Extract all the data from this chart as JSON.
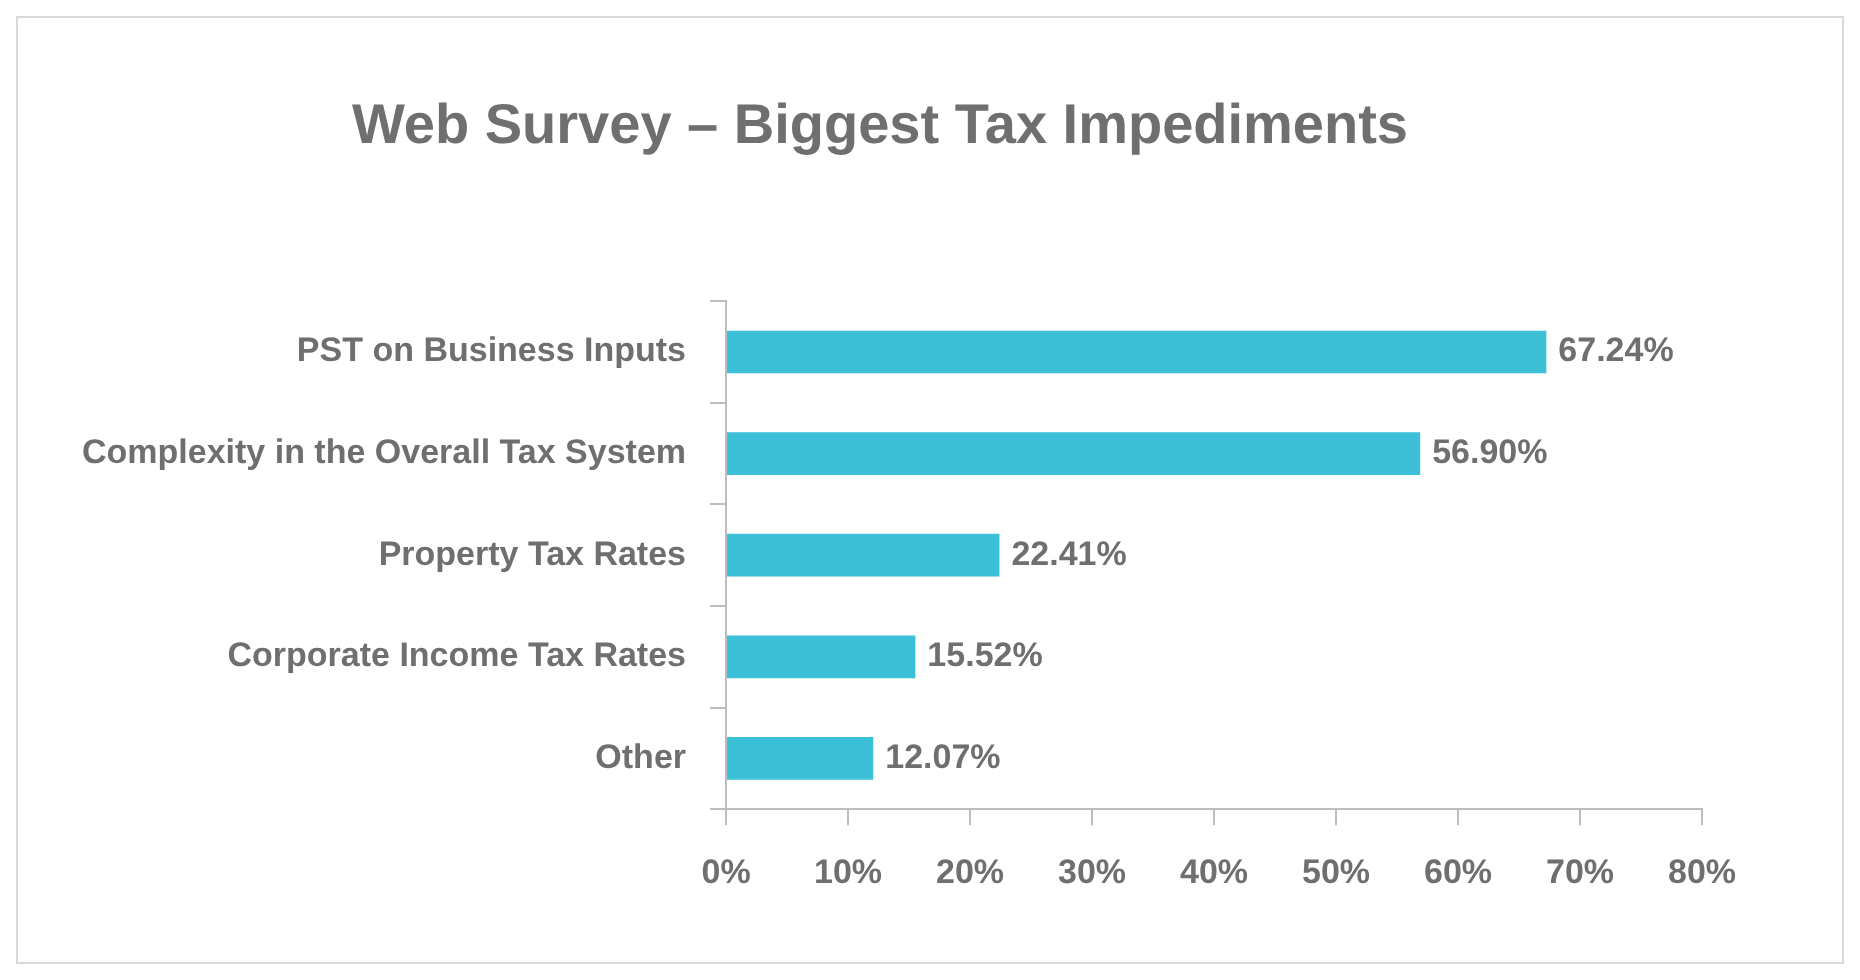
{
  "chart_data": {
    "type": "bar",
    "orientation": "horizontal",
    "title": "Web Survey – Biggest Tax Impediments",
    "categories": [
      "PST on Business Inputs",
      "Complexity in the Overall Tax System",
      "Property Tax Rates",
      "Corporate Income Tax Rates",
      "Other"
    ],
    "values": [
      67.24,
      56.9,
      22.41,
      15.52,
      12.07
    ],
    "value_labels": [
      "67.24%",
      "56.90%",
      "22.41%",
      "15.52%",
      "12.07%"
    ],
    "color": "#3bc0d8",
    "xlim": [
      0,
      80
    ],
    "xticks": [
      {
        "value": 0,
        "label": "0%"
      },
      {
        "value": 10,
        "label": "10%"
      },
      {
        "value": 20,
        "label": "20%"
      },
      {
        "value": 30,
        "label": "30%"
      },
      {
        "value": 40,
        "label": "40%"
      },
      {
        "value": 50,
        "label": "50%"
      },
      {
        "value": 60,
        "label": "60%"
      },
      {
        "value": 70,
        "label": "70%"
      },
      {
        "value": 80,
        "label": "80%"
      }
    ],
    "grid": false,
    "legend": false
  }
}
